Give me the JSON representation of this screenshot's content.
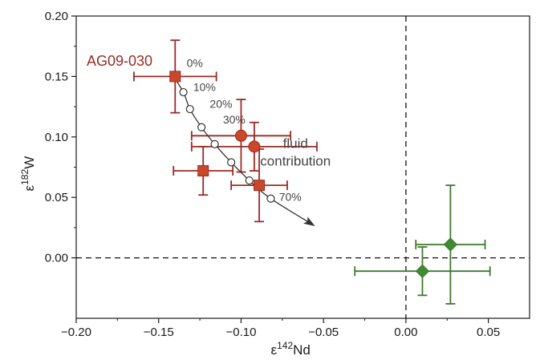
{
  "colors": {
    "red_stroke": "#9b2a24",
    "red_fill": "#c9482a",
    "green_stroke": "#3d7a2c",
    "green_fill": "#3f8a35",
    "model_curve": "#333333",
    "frame": "#1a1a1a"
  },
  "chart_data": {
    "type": "scatter",
    "xlabel": {
      "prefix": "ε",
      "sup": "142",
      "suffix": "Nd"
    },
    "ylabel": {
      "prefix": "ε",
      "sup": "182",
      "suffix": "W"
    },
    "xlim": [
      -0.2,
      0.075
    ],
    "ylim": [
      -0.05,
      0.2
    ],
    "x_ticks": [
      -0.2,
      -0.15,
      -0.1,
      -0.05,
      0.0,
      0.05
    ],
    "x_tick_labels": [
      "−0.20",
      "−0.15",
      "−0.10",
      "−0.05",
      "0.00",
      "0.05"
    ],
    "y_ticks": [
      0.0,
      0.05,
      0.1,
      0.15,
      0.2
    ],
    "y_tick_labels": [
      "0.00",
      "0.05",
      "0.10",
      "0.15",
      "0.20"
    ],
    "grid": false,
    "reference_lines": {
      "x": 0.0,
      "y": 0.0,
      "style": "dashed"
    },
    "sample_label": "AG09-030",
    "series": [
      {
        "marker": "square",
        "color_group": "red",
        "points": [
          {
            "x": -0.14,
            "y": 0.15,
            "xerr": 0.025,
            "yerr": 0.03
          },
          {
            "x": -0.123,
            "y": 0.072,
            "xerr": 0.018,
            "yerr": 0.02
          },
          {
            "x": -0.089,
            "y": 0.06,
            "xerr": 0.017,
            "yerr": 0.03
          }
        ]
      },
      {
        "marker": "circle",
        "color_group": "red",
        "points": [
          {
            "x": -0.1,
            "y": 0.101,
            "xerr": 0.03,
            "yerr": 0.03
          },
          {
            "x": -0.092,
            "y": 0.092,
            "xerr": 0.038,
            "yerr": 0.02
          }
        ]
      },
      {
        "marker": "diamond",
        "color_group": "green",
        "points": [
          {
            "x": 0.027,
            "y": 0.011,
            "xerr": 0.021,
            "yerr": 0.049
          },
          {
            "x": 0.01,
            "y": -0.011,
            "xerr": 0.041,
            "yerr": 0.02
          }
        ]
      }
    ],
    "mixing_model": {
      "points": [
        {
          "x": -0.141,
          "y": 0.15
        },
        {
          "x": -0.135,
          "y": 0.137
        },
        {
          "x": -0.131,
          "y": 0.123
        },
        {
          "x": -0.124,
          "y": 0.108
        },
        {
          "x": -0.116,
          "y": 0.094
        },
        {
          "x": -0.106,
          "y": 0.079
        },
        {
          "x": -0.095,
          "y": 0.064
        },
        {
          "x": -0.082,
          "y": 0.049
        }
      ],
      "arrow_end": {
        "x": -0.056,
        "y": 0.027
      },
      "labels": [
        {
          "text": "0%",
          "x": -0.133,
          "y": 0.158
        },
        {
          "text": "10%",
          "x": -0.129,
          "y": 0.138
        },
        {
          "text": "20%",
          "x": -0.119,
          "y": 0.124
        },
        {
          "text": "30%",
          "x": -0.111,
          "y": 0.111
        },
        {
          "text": "70%",
          "x": -0.077,
          "y": 0.047
        }
      ],
      "arrow_label_lines": [
        "fluid",
        "contribution"
      ],
      "arrow_label_anchor": {
        "x": -0.067,
        "y": 0.091
      }
    }
  }
}
